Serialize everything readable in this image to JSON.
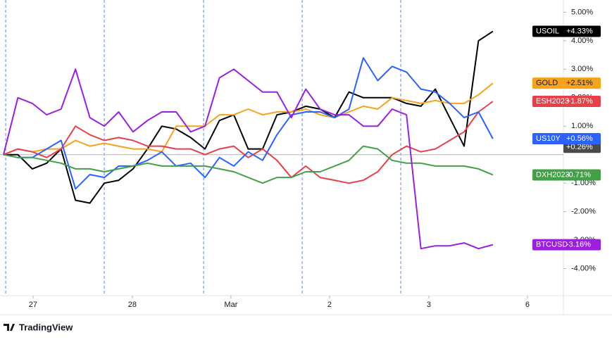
{
  "chart_data": {
    "type": "line",
    "x": [
      0,
      1,
      2,
      3,
      4,
      5,
      6,
      7,
      8,
      9,
      10,
      11,
      12,
      13,
      14,
      15,
      16,
      17,
      18,
      19,
      20,
      21,
      22,
      23,
      24,
      25,
      26,
      27,
      28,
      29,
      30,
      31,
      32,
      33,
      34
    ],
    "xlim": [
      0,
      38.9
    ],
    "xticks": [
      {
        "value": 2.05,
        "label": "27"
      },
      {
        "value": 8.95,
        "label": "28"
      },
      {
        "value": 15.8,
        "label": "Mar"
      },
      {
        "value": 22.65,
        "label": "2"
      },
      {
        "value": 29.55,
        "label": "3"
      },
      {
        "value": 36.4,
        "label": "6"
      }
    ],
    "session_lines": [
      0.15,
      7.0,
      13.9,
      20.75,
      27.6
    ],
    "ylim": [
      -4.95,
      5.43
    ],
    "yticks": [
      {
        "value": 5,
        "label": "5.00%"
      },
      {
        "value": 4,
        "label": "4.00%"
      },
      {
        "value": 3,
        "label": "3.00%"
      },
      {
        "value": 2,
        "label": "2.00%"
      },
      {
        "value": 1,
        "label": "1.00%"
      },
      {
        "value": -1,
        "label": "-1.00%"
      },
      {
        "value": -2,
        "label": "-2.00%"
      },
      {
        "value": -3,
        "label": "-3.00%"
      },
      {
        "value": -4,
        "label": "-4.00%"
      }
    ],
    "series": [
      {
        "name": "USOIL",
        "color": "#000000",
        "last_label": "+4.33%",
        "values": [
          0,
          0,
          -0.5,
          -0.3,
          0.2,
          -1.6,
          -1.7,
          -1.0,
          -0.9,
          -0.5,
          0.2,
          1.0,
          0.9,
          0.6,
          0.2,
          1.2,
          1.4,
          0.2,
          0.2,
          1.4,
          1.5,
          1.7,
          1.6,
          1.3,
          2.2,
          2.0,
          2.0,
          2.0,
          1.8,
          1.7,
          2.3,
          1.3,
          0.3,
          4.0,
          4.33
        ]
      },
      {
        "name": "GOLD",
        "color": "#f7a21b",
        "last_label": "+2.51%",
        "values": [
          0,
          0.2,
          0.1,
          0.2,
          0.2,
          0.5,
          0.3,
          0.4,
          0.3,
          0.2,
          0.2,
          0.1,
          1.0,
          1.0,
          1.0,
          1.4,
          1.4,
          1.6,
          1.4,
          1.5,
          1.5,
          1.6,
          1.4,
          1.3,
          1.5,
          1.7,
          1.6,
          2.0,
          1.9,
          1.8,
          1.9,
          1.8,
          1.8,
          2.1,
          2.51
        ]
      },
      {
        "name": "ESH2023",
        "color": "#e8404a",
        "last_label": "+1.87%",
        "values": [
          0,
          0.2,
          0.1,
          -0.1,
          0.2,
          1.0,
          0.7,
          0.5,
          0.6,
          0.5,
          0.3,
          0.3,
          0.2,
          0.2,
          0.0,
          0.2,
          0.3,
          -0.1,
          0.2,
          -0.2,
          -0.8,
          -0.4,
          -0.8,
          -0.9,
          -1.0,
          -0.9,
          -0.6,
          0.0,
          0.3,
          0.1,
          0.2,
          0.5,
          0.8,
          1.5,
          1.87
        ]
      },
      {
        "name": "US10Y",
        "color": "#2962ff",
        "last_label": "+0.56%",
        "values": [
          0,
          -0.1,
          -0.1,
          0.2,
          0.5,
          -1.2,
          -0.7,
          -0.8,
          -0.4,
          -0.4,
          -0.2,
          0.1,
          -0.4,
          -0.3,
          -0.8,
          -0.1,
          -0.4,
          0.1,
          -0.2,
          0.7,
          1.4,
          1.5,
          1.5,
          1.3,
          1.6,
          3.4,
          2.6,
          3.1,
          2.9,
          2.3,
          2.2,
          1.8,
          1.3,
          1.5,
          0.56
        ]
      },
      {
        "name": "DXH2023",
        "color": "#43a047",
        "last_label": "-0.71%",
        "values": [
          0,
          -0.1,
          -0.1,
          -0.2,
          -0.3,
          -0.5,
          -0.5,
          -0.6,
          -0.5,
          -0.4,
          -0.3,
          -0.4,
          -0.4,
          -0.4,
          -0.4,
          -0.5,
          -0.6,
          -0.8,
          -1.0,
          -0.8,
          -0.8,
          -0.6,
          -0.6,
          -0.4,
          -0.2,
          0.3,
          0.2,
          -0.2,
          -0.3,
          -0.3,
          -0.4,
          -0.4,
          -0.4,
          -0.5,
          -0.71
        ]
      },
      {
        "name": "BTCUSD",
        "color": "#9c1ee0",
        "last_label": "-3.16%",
        "values": [
          0,
          2.0,
          1.8,
          1.4,
          1.6,
          3.0,
          1.3,
          1.0,
          1.5,
          0.8,
          1.2,
          1.5,
          1.5,
          0.8,
          1.0,
          2.7,
          3.0,
          2.6,
          2.2,
          2.2,
          1.3,
          2.3,
          1.6,
          1.4,
          1.4,
          1.0,
          1.0,
          1.6,
          1.4,
          -3.3,
          -3.2,
          -3.2,
          -3.1,
          -3.3,
          -3.16
        ]
      }
    ],
    "annotations": [
      {
        "value": 0.26,
        "label": "+0.26%",
        "color": "#4a4a4a"
      }
    ],
    "branding": "TradingView"
  }
}
